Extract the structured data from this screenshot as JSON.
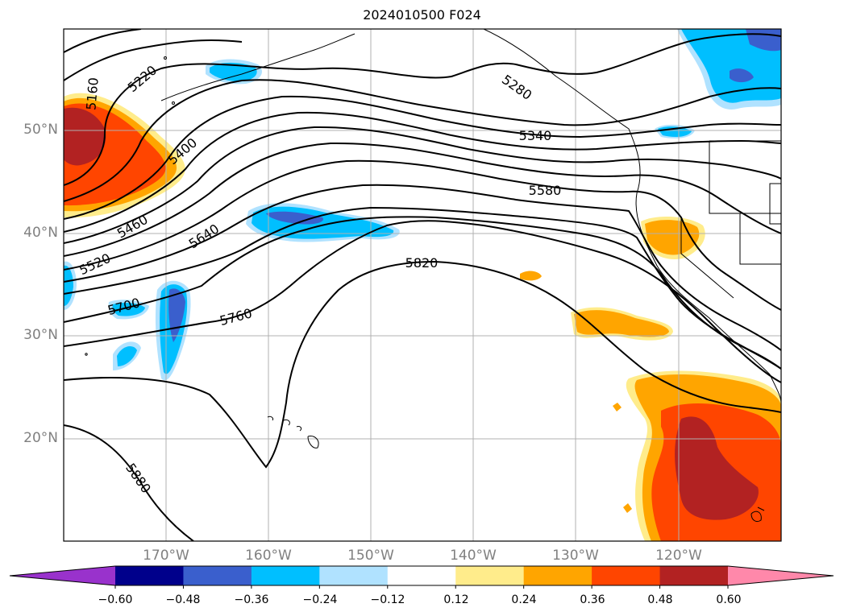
{
  "title": "2024010500 F024",
  "map": {
    "lat_labels": [
      "50°N",
      "40°N",
      "30°N",
      "20°N"
    ],
    "lon_labels": [
      "170°W",
      "160°W",
      "150°W",
      "140°W",
      "130°W",
      "120°W"
    ],
    "contour_labels": [
      "5160",
      "5220",
      "5280",
      "5340",
      "5400",
      "5460",
      "5520",
      "5580",
      "5640",
      "5700",
      "5760",
      "5820",
      "5880"
    ]
  },
  "colorbar": {
    "ticks": [
      "−0.60",
      "−0.48",
      "−0.36",
      "−0.24",
      "−0.12",
      "0.12",
      "0.24",
      "0.36",
      "0.48",
      "0.60"
    ],
    "colors": [
      "#9932cc",
      "#00008b",
      "#3a5fcd",
      "#00bfff",
      "#b0e2ff",
      "#ffffff",
      "#ffec8b",
      "#ffa500",
      "#ff4500",
      "#b22222",
      "#ff88aa"
    ]
  }
}
